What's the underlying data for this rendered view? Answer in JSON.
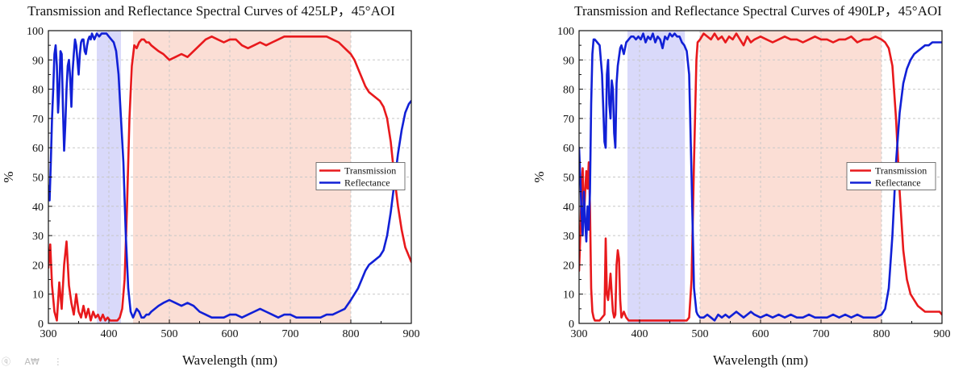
{
  "colors": {
    "transmission": "#e8191c",
    "reflectance": "#1120d6",
    "red_band": "#fbded5",
    "blue_band": "#d9d9fa",
    "grid": "#c8c8c8"
  },
  "chart_data": [
    {
      "type": "line",
      "title": "Transmission and Reflectance Spectral Curves of 425LP，45°AOI",
      "xlabel": "Wavelength (nm)",
      "ylabel": "%",
      "xlim": [
        300,
        900
      ],
      "ylim": [
        0,
        100
      ],
      "xticks": [
        300,
        400,
        500,
        600,
        700,
        800,
        900
      ],
      "yticks": [
        0,
        10,
        20,
        30,
        40,
        50,
        60,
        70,
        80,
        90,
        100
      ],
      "grid": true,
      "legend_position": "center-right",
      "shaded_regions": [
        {
          "x0": 380,
          "x1": 420,
          "color": "blue"
        },
        {
          "x0": 440,
          "x1": 800,
          "color": "red"
        }
      ],
      "series": [
        {
          "name": "Transmission",
          "color_key": "transmission",
          "x": [
            300,
            303,
            306,
            310,
            314,
            318,
            322,
            326,
            330,
            334,
            338,
            342,
            346,
            350,
            354,
            358,
            362,
            366,
            370,
            374,
            378,
            382,
            386,
            390,
            394,
            398,
            402,
            406,
            410,
            414,
            418,
            422,
            426,
            430,
            434,
            438,
            442,
            446,
            450,
            454,
            458,
            462,
            466,
            470,
            476,
            482,
            490,
            500,
            510,
            520,
            530,
            540,
            550,
            560,
            570,
            580,
            590,
            600,
            610,
            620,
            630,
            640,
            650,
            660,
            670,
            680,
            690,
            700,
            710,
            720,
            730,
            740,
            750,
            760,
            770,
            780,
            790,
            800,
            806,
            812,
            818,
            824,
            830,
            836,
            842,
            848,
            854,
            860,
            866,
            872,
            878,
            884,
            890,
            896,
            900
          ],
          "y": [
            19,
            27,
            13,
            4,
            1,
            14,
            5,
            20,
            28,
            13,
            7,
            3,
            10,
            4,
            2,
            6,
            2,
            5,
            1,
            4,
            2,
            3,
            1,
            3,
            1,
            2,
            1,
            1,
            1,
            1,
            2,
            5,
            15,
            40,
            70,
            88,
            95,
            94,
            96,
            97,
            97,
            96,
            96,
            95,
            94,
            93,
            92,
            90,
            91,
            92,
            91,
            93,
            95,
            97,
            98,
            97,
            96,
            97,
            97,
            95,
            94,
            95,
            96,
            95,
            96,
            97,
            98,
            98,
            98,
            98,
            98,
            98,
            98,
            98,
            97,
            96,
            94,
            92,
            90,
            87,
            84,
            81,
            79,
            78,
            77,
            76,
            74,
            70,
            62,
            50,
            40,
            32,
            26,
            23,
            21
          ]
        },
        {
          "name": "Reflectance",
          "color_key": "reflectance",
          "x": [
            300,
            302,
            304,
            306,
            308,
            310,
            312,
            314,
            316,
            318,
            320,
            322,
            324,
            326,
            328,
            330,
            332,
            334,
            336,
            338,
            340,
            342,
            344,
            346,
            348,
            350,
            352,
            354,
            356,
            358,
            360,
            362,
            364,
            366,
            368,
            370,
            372,
            374,
            376,
            378,
            380,
            384,
            388,
            392,
            396,
            400,
            404,
            408,
            412,
            416,
            420,
            424,
            428,
            432,
            436,
            440,
            442,
            446,
            450,
            454,
            458,
            462,
            466,
            470,
            476,
            482,
            490,
            500,
            510,
            520,
            530,
            540,
            550,
            560,
            570,
            580,
            590,
            600,
            610,
            620,
            630,
            640,
            650,
            660,
            670,
            680,
            690,
            700,
            710,
            720,
            730,
            740,
            750,
            760,
            770,
            780,
            790,
            800,
            806,
            812,
            818,
            824,
            830,
            836,
            842,
            848,
            854,
            860,
            866,
            872,
            878,
            884,
            890,
            896,
            900
          ],
          "y": [
            47,
            42,
            55,
            70,
            80,
            92,
            95,
            88,
            72,
            80,
            93,
            92,
            74,
            59,
            68,
            80,
            88,
            90,
            84,
            74,
            86,
            92,
            97,
            95,
            90,
            85,
            92,
            96,
            97,
            97,
            93,
            92,
            95,
            97,
            98,
            97,
            99,
            98,
            97,
            98,
            99,
            98,
            99,
            99,
            99,
            98,
            97,
            96,
            93,
            85,
            70,
            55,
            30,
            12,
            4,
            2,
            3,
            5,
            4,
            2,
            2,
            3,
            3,
            4,
            5,
            6,
            7,
            8,
            7,
            6,
            7,
            6,
            4,
            3,
            2,
            2,
            2,
            3,
            3,
            2,
            3,
            4,
            5,
            4,
            3,
            2,
            3,
            3,
            2,
            2,
            2,
            2,
            2,
            3,
            3,
            4,
            5,
            8,
            10,
            12,
            15,
            18,
            20,
            21,
            22,
            23,
            25,
            30,
            38,
            48,
            58,
            66,
            72,
            75,
            76
          ]
        }
      ]
    },
    {
      "type": "line",
      "title": "Transmission and Reflectance Spectral Curves of 490LP，45°AOI",
      "xlabel": "Wavelength (nm)",
      "ylabel": "%",
      "xlim": [
        300,
        900
      ],
      "ylim": [
        0,
        100
      ],
      "xticks": [
        300,
        400,
        500,
        600,
        700,
        800,
        900
      ],
      "yticks": [
        0,
        10,
        20,
        30,
        40,
        50,
        60,
        70,
        80,
        90,
        100
      ],
      "grid": true,
      "legend_position": "center-right",
      "shaded_regions": [
        {
          "x0": 380,
          "x1": 475,
          "color": "blue"
        },
        {
          "x0": 500,
          "x1": 800,
          "color": "red"
        }
      ],
      "series": [
        {
          "name": "Transmission",
          "color_key": "transmission",
          "x": [
            300,
            302,
            304,
            306,
            308,
            310,
            312,
            314,
            316,
            318,
            320,
            322,
            324,
            326,
            330,
            334,
            338,
            342,
            344,
            346,
            348,
            350,
            352,
            354,
            356,
            358,
            360,
            362,
            364,
            366,
            368,
            370,
            374,
            378,
            382,
            386,
            390,
            394,
            398,
            402,
            406,
            410,
            414,
            418,
            422,
            426,
            430,
            434,
            438,
            442,
            446,
            450,
            454,
            458,
            462,
            466,
            470,
            474,
            478,
            482,
            486,
            490,
            494,
            496,
            500,
            506,
            512,
            518,
            524,
            530,
            536,
            542,
            548,
            554,
            560,
            566,
            572,
            578,
            584,
            590,
            600,
            610,
            620,
            630,
            640,
            650,
            660,
            670,
            680,
            690,
            700,
            710,
            720,
            730,
            740,
            750,
            760,
            770,
            780,
            790,
            800,
            806,
            812,
            818,
            824,
            830,
            836,
            842,
            848,
            854,
            860,
            866,
            872,
            878,
            884,
            890,
            896,
            900
          ],
          "y": [
            18,
            30,
            45,
            53,
            35,
            45,
            52,
            46,
            55,
            40,
            12,
            4,
            2,
            1,
            1,
            1,
            2,
            3,
            29,
            10,
            8,
            12,
            17,
            10,
            4,
            2,
            3,
            20,
            25,
            22,
            8,
            2,
            4,
            2,
            1,
            1,
            1,
            1,
            1,
            1,
            1,
            1,
            1,
            1,
            1,
            1,
            1,
            1,
            1,
            1,
            1,
            1,
            1,
            1,
            1,
            1,
            1,
            1,
            1,
            2,
            15,
            55,
            90,
            96,
            97,
            99,
            98,
            97,
            99,
            97,
            98,
            96,
            98,
            97,
            99,
            97,
            95,
            98,
            96,
            97,
            98,
            97,
            96,
            97,
            98,
            97,
            97,
            96,
            97,
            98,
            97,
            97,
            96,
            97,
            97,
            98,
            96,
            97,
            97,
            98,
            97,
            96,
            94,
            88,
            70,
            45,
            25,
            15,
            10,
            8,
            6,
            5,
            4,
            4,
            4,
            4,
            4,
            3
          ]
        },
        {
          "name": "Reflectance",
          "color_key": "reflectance",
          "x": [
            300,
            302,
            304,
            306,
            308,
            310,
            312,
            314,
            316,
            318,
            320,
            322,
            324,
            326,
            330,
            334,
            338,
            342,
            344,
            346,
            348,
            350,
            352,
            354,
            356,
            358,
            360,
            362,
            364,
            366,
            368,
            370,
            374,
            378,
            382,
            386,
            390,
            394,
            398,
            402,
            406,
            410,
            414,
            418,
            422,
            426,
            430,
            434,
            438,
            442,
            446,
            450,
            454,
            458,
            462,
            466,
            470,
            474,
            478,
            482,
            486,
            490,
            494,
            496,
            500,
            506,
            512,
            518,
            524,
            530,
            536,
            542,
            548,
            554,
            560,
            566,
            572,
            578,
            584,
            590,
            600,
            610,
            620,
            630,
            640,
            650,
            660,
            670,
            680,
            690,
            700,
            710,
            720,
            730,
            740,
            750,
            760,
            770,
            780,
            790,
            800,
            806,
            812,
            818,
            824,
            830,
            836,
            842,
            848,
            854,
            860,
            866,
            872,
            878,
            884,
            890,
            896,
            900
          ],
          "y": [
            60,
            50,
            38,
            30,
            45,
            35,
            28,
            40,
            32,
            45,
            75,
            92,
            97,
            97,
            96,
            95,
            85,
            62,
            60,
            85,
            90,
            75,
            70,
            83,
            80,
            65,
            60,
            82,
            88,
            91,
            94,
            95,
            92,
            96,
            97,
            98,
            98,
            97,
            98,
            97,
            99,
            96,
            98,
            97,
            99,
            96,
            98,
            97,
            94,
            98,
            97,
            99,
            98,
            99,
            98,
            98,
            96,
            95,
            93,
            85,
            50,
            12,
            4,
            3,
            2,
            2,
            3,
            2,
            1,
            3,
            2,
            3,
            2,
            3,
            4,
            3,
            2,
            3,
            4,
            3,
            2,
            3,
            2,
            3,
            2,
            3,
            2,
            2,
            3,
            2,
            2,
            2,
            3,
            2,
            3,
            2,
            3,
            2,
            2,
            2,
            3,
            5,
            12,
            30,
            55,
            72,
            82,
            87,
            90,
            92,
            93,
            94,
            95,
            95,
            96,
            96,
            96,
            96
          ]
        }
      ]
    }
  ],
  "toolbar": {
    "glyph_1": "ⓠ",
    "glyph_2": "A₩",
    "glyph_3": "⋮"
  }
}
